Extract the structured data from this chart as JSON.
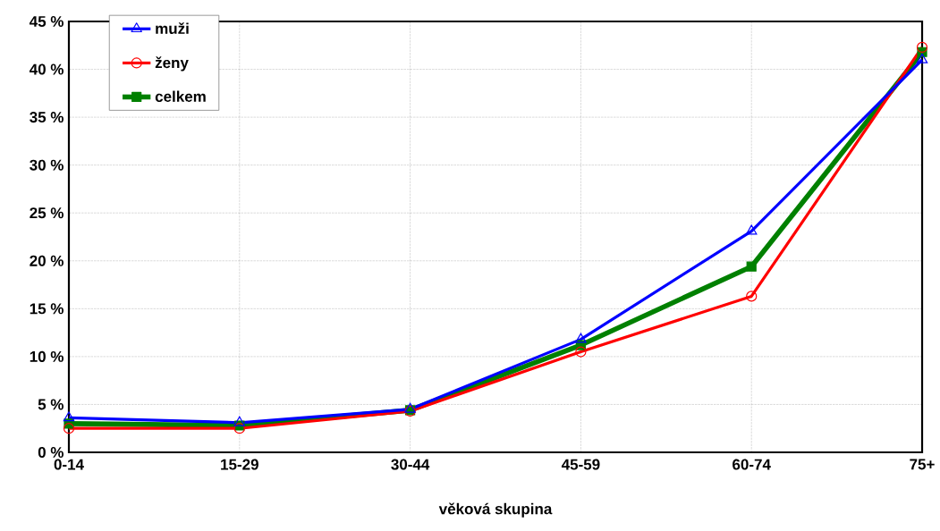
{
  "chart_data": {
    "type": "line",
    "xlabel": "věková skupina",
    "categories": [
      "0-14",
      "15-29",
      "30-44",
      "45-59",
      "60-74",
      "75+"
    ],
    "series": [
      {
        "name": "muži",
        "color": "#0000ff",
        "marker": "triangle",
        "values": [
          3.6,
          3.1,
          4.5,
          11.8,
          23.1,
          41.0
        ]
      },
      {
        "name": "ženy",
        "color": "#ff0000",
        "marker": "circle",
        "values": [
          2.5,
          2.5,
          4.3,
          10.5,
          16.3,
          42.3
        ]
      },
      {
        "name": "celkem",
        "color": "#008000",
        "marker": "square",
        "values": [
          3.0,
          2.8,
          4.4,
          11.2,
          19.4,
          41.8
        ]
      }
    ],
    "ylim": [
      0,
      45
    ],
    "yticks": [
      {
        "value": 0,
        "label": "0 %"
      },
      {
        "value": 5,
        "label": "5 %"
      },
      {
        "value": 10,
        "label": "10 %"
      },
      {
        "value": 15,
        "label": "15 %"
      },
      {
        "value": 20,
        "label": "20 %"
      },
      {
        "value": 25,
        "label": "25 %"
      },
      {
        "value": 30,
        "label": "30 %"
      },
      {
        "value": 35,
        "label": "35 %"
      },
      {
        "value": 40,
        "label": "40 %"
      },
      {
        "value": 45,
        "label": "45 %"
      }
    ],
    "grid": true,
    "legend": "top left",
    "line_style": "solid"
  }
}
